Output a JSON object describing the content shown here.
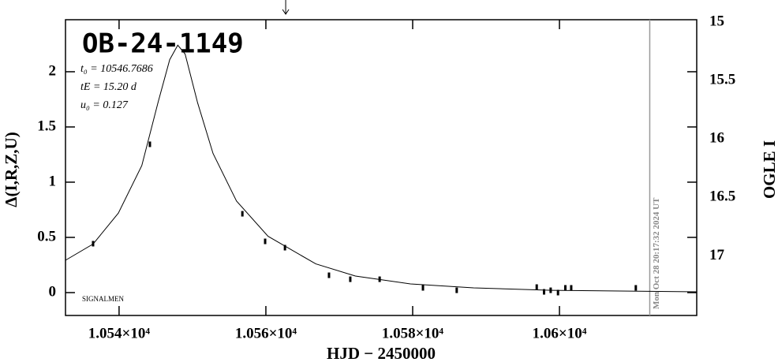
{
  "chart_data": {
    "type": "lightcurve",
    "title": "OB-24-1149",
    "annotations": [
      "t₀ = 10546.7686",
      "tE = 15.20 d",
      "u₀ = 0.127"
    ],
    "credit": "SIGNALMEN",
    "timestamp": "Mon Oct 28 20:17:32 2024 UT",
    "timestamp_x": 10612.3,
    "arrow_x": 10562.7,
    "xlabel": "HJD − 2450000",
    "ylabel": "Δ(I,R,Z,U)",
    "y2label": "OGLE I",
    "xlim": [
      10532.7,
      10618.7
    ],
    "ylim": [
      -0.207,
      2.471
    ],
    "y2lim": [
      17.51,
      14.98
    ],
    "xticks": [
      {
        "value": 10540,
        "label": "1.054×10⁴"
      },
      {
        "value": 10560,
        "label": "1.056×10⁴"
      },
      {
        "value": 10580,
        "label": "1.058×10⁴"
      },
      {
        "value": 10600,
        "label": "1.06×10⁴"
      }
    ],
    "yticks": [
      0,
      0.5,
      1,
      1.5,
      2
    ],
    "y2ticks": [
      15,
      15.5,
      16,
      16.5,
      17
    ],
    "series": [
      {
        "mode": "markers",
        "color": "#000000",
        "x": [
          10536.46,
          10544.2,
          10556.8,
          10559.9,
          10562.6,
          10568.6,
          10571.5,
          10575.5,
          10581.4,
          10586.0,
          10596.9,
          10597.9,
          10598.8,
          10599.8,
          10600.8,
          10601.6,
          10610.4
        ],
        "values": [
          0.443,
          1.343,
          0.714,
          0.464,
          0.407,
          0.157,
          0.121,
          0.121,
          0.043,
          0.021,
          0.05,
          0.007,
          0.021,
          0.0,
          0.043,
          0.043,
          0.043
        ]
      },
      {
        "mode": "line",
        "color": "#000000",
        "x": [
          10532.7,
          10536.46,
          10539.9,
          10543.1,
          10545.3,
          10546.9,
          10548.0,
          10549.0,
          10550.7,
          10552.8,
          10556.0,
          10560.3,
          10566.8,
          10572.2,
          10579.7,
          10588.3,
          10599.0,
          10618.7
        ],
        "values": [
          0.293,
          0.44,
          0.72,
          1.15,
          1.72,
          2.11,
          2.24,
          2.16,
          1.72,
          1.26,
          0.83,
          0.51,
          0.26,
          0.15,
          0.079,
          0.043,
          0.021,
          0.007
        ]
      }
    ]
  }
}
